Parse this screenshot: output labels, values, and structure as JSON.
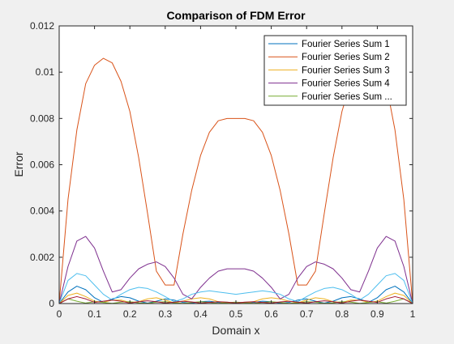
{
  "chart_data": {
    "type": "line",
    "title": "Comparison of FDM Error",
    "xlabel": "Domain x",
    "ylabel": "Error",
    "xlim": [
      0,
      1
    ],
    "ylim": [
      0,
      0.012
    ],
    "xticks": [
      "0",
      "0.1",
      "0.2",
      "0.3",
      "0.4",
      "0.5",
      "0.6",
      "0.7",
      "0.8",
      "0.9",
      "1"
    ],
    "yticks": [
      "0",
      "0.002",
      "0.004",
      "0.006",
      "0.008",
      "0.01",
      "0.012"
    ],
    "legend_position": "top-right",
    "grid": false,
    "x": [
      0,
      0.025,
      0.05,
      0.075,
      0.1,
      0.125,
      0.15,
      0.175,
      0.2,
      0.225,
      0.25,
      0.275,
      0.3,
      0.325,
      0.35,
      0.375,
      0.4,
      0.425,
      0.45,
      0.475,
      0.5,
      0.525,
      0.55,
      0.575,
      0.6,
      0.625,
      0.65,
      0.675,
      0.7,
      0.725,
      0.75,
      0.775,
      0.8,
      0.825,
      0.85,
      0.875,
      0.9,
      0.925,
      0.95,
      0.975,
      1
    ],
    "series": [
      {
        "name": "Fourier Series Sum 1",
        "color": "#0072bd",
        "values": [
          0,
          0.0005,
          0.00075,
          0.0006,
          0.00025,
          5e-05,
          0.0002,
          0.0003,
          0.00025,
          0.0001,
          2e-05,
          0.0001,
          0.0002,
          0.00015,
          5e-05,
          2e-05,
          8e-05,
          0.0001,
          5e-05,
          2e-05,
          1e-05,
          2e-05,
          5e-05,
          0.0001,
          8e-05,
          2e-05,
          5e-05,
          0.00015,
          0.0002,
          0.0001,
          2e-05,
          0.0001,
          0.00025,
          0.0003,
          0.0002,
          5e-05,
          0.00025,
          0.0006,
          0.00075,
          0.0005,
          0
        ]
      },
      {
        "name": "Fourier Series Sum 2",
        "color": "#d95319",
        "values": [
          0,
          0.0045,
          0.0075,
          0.0095,
          0.0103,
          0.0106,
          0.0104,
          0.0096,
          0.0083,
          0.0063,
          0.0039,
          0.0014,
          0.0008,
          0.0008,
          0.003,
          0.0049,
          0.0064,
          0.0074,
          0.0079,
          0.008,
          0.008,
          0.008,
          0.0079,
          0.0074,
          0.0064,
          0.0049,
          0.003,
          0.0008,
          0.0008,
          0.0014,
          0.0039,
          0.0063,
          0.0083,
          0.0096,
          0.0104,
          0.0106,
          0.0103,
          0.0095,
          0.0075,
          0.0045,
          0
        ]
      },
      {
        "name": "Fourier Series Sum 3",
        "color": "#edb120",
        "values": [
          0,
          0.00035,
          0.00045,
          0.0003,
          0.0001,
          5e-05,
          0.00015,
          0.00015,
          5e-05,
          8e-05,
          0.0002,
          0.00025,
          0.00015,
          3e-05,
          0.0001,
          0.0002,
          0.00025,
          0.0002,
          8e-05,
          2e-05,
          1e-05,
          2e-05,
          8e-05,
          0.0002,
          0.00025,
          0.0002,
          0.0001,
          3e-05,
          0.00015,
          0.00025,
          0.0002,
          8e-05,
          5e-05,
          0.00015,
          0.00015,
          5e-05,
          0.0001,
          0.0003,
          0.00045,
          0.00035,
          0
        ]
      },
      {
        "name": "Fourier Series Sum 4",
        "color": "#7e2f8e",
        "values": [
          0,
          0.0016,
          0.0027,
          0.0029,
          0.0024,
          0.0014,
          0.0005,
          0.0006,
          0.0011,
          0.0015,
          0.0017,
          0.0018,
          0.0016,
          0.0011,
          0.0004,
          0.0002,
          0.0007,
          0.0011,
          0.0014,
          0.0015,
          0.0015,
          0.0015,
          0.0014,
          0.0011,
          0.0007,
          0.0002,
          0.0004,
          0.0011,
          0.0016,
          0.0018,
          0.0017,
          0.0015,
          0.0011,
          0.0006,
          0.0005,
          0.0014,
          0.0024,
          0.0029,
          0.0027,
          0.0016,
          0
        ]
      },
      {
        "name": "Fourier Series Sum ...",
        "color": "#77ac30",
        "values": [
          0,
          0.0002,
          0.0001,
          2e-05,
          8e-05,
          5e-05,
          1e-05,
          6e-05,
          8e-05,
          3e-05,
          1e-05,
          6e-05,
          8e-05,
          3e-05,
          1e-05,
          5e-05,
          8e-05,
          5e-05,
          1e-05,
          4e-05,
          6e-05,
          4e-05,
          1e-05,
          5e-05,
          8e-05,
          5e-05,
          1e-05,
          3e-05,
          8e-05,
          6e-05,
          1e-05,
          3e-05,
          8e-05,
          6e-05,
          1e-05,
          5e-05,
          8e-05,
          2e-05,
          0.0001,
          0.0002,
          0
        ]
      },
      {
        "color": "#4dbeee",
        "values": [
          0,
          0.001,
          0.0013,
          0.0012,
          0.0008,
          0.0004,
          0.00015,
          0.0004,
          0.0006,
          0.0007,
          0.00065,
          0.0005,
          0.0003,
          8e-05,
          0.0002,
          0.0004,
          0.0005,
          0.00055,
          0.0005,
          0.00045,
          0.0004,
          0.00045,
          0.0005,
          0.00055,
          0.0005,
          0.0004,
          0.0002,
          8e-05,
          0.0003,
          0.0005,
          0.00065,
          0.0007,
          0.0006,
          0.0004,
          0.00015,
          0.0004,
          0.0008,
          0.0012,
          0.0013,
          0.001,
          0
        ]
      },
      {
        "color": "#a2142f",
        "values": [
          0,
          0.0002,
          0.0003,
          0.0002,
          5e-05,
          0.0001,
          0.00015,
          0.0001,
          2e-05,
          8e-05,
          0.00012,
          8e-05,
          2e-05,
          6e-05,
          0.0001,
          7e-05,
          2e-05,
          5e-05,
          8e-05,
          6e-05,
          2e-05,
          6e-05,
          8e-05,
          5e-05,
          2e-05,
          7e-05,
          0.0001,
          6e-05,
          2e-05,
          8e-05,
          0.00012,
          8e-05,
          2e-05,
          0.0001,
          0.00015,
          0.0001,
          5e-05,
          0.0002,
          0.0003,
          0.0002,
          0
        ]
      }
    ]
  }
}
